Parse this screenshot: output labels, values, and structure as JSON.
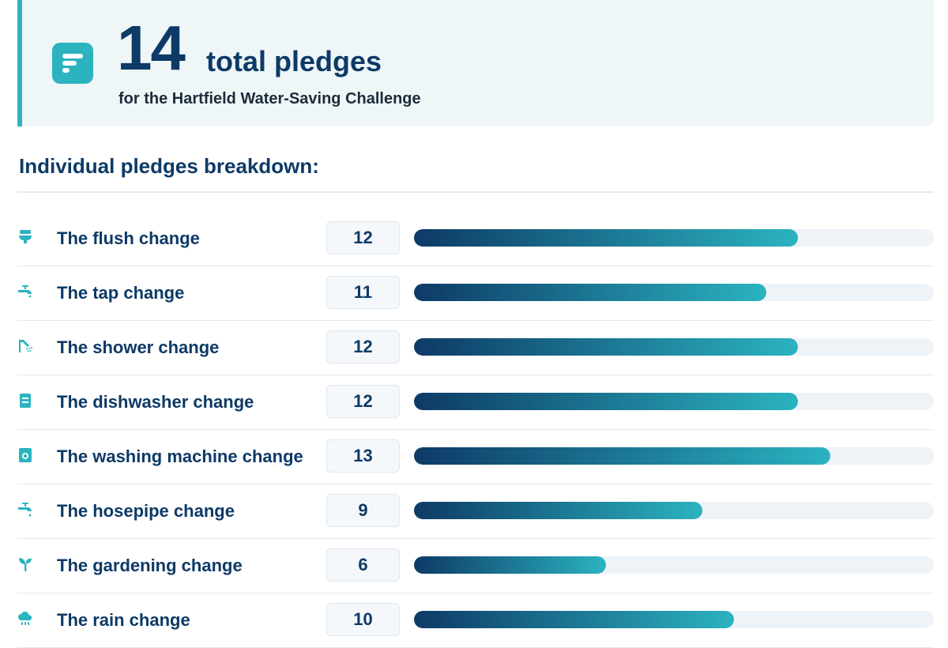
{
  "summary": {
    "total": "14",
    "total_label": "total pledges",
    "subtitle": "for the Hartfield Water-Saving Challenge"
  },
  "section_title": "Individual pledges breakdown:",
  "accent_color": "#2bb3c0",
  "bar_max": 14,
  "pledges": [
    {
      "label": "The flush change",
      "count": 12,
      "icon": "toilet-icon"
    },
    {
      "label": "The tap change",
      "count": 11,
      "icon": "tap-icon"
    },
    {
      "label": "The shower change",
      "count": 12,
      "icon": "shower-icon"
    },
    {
      "label": "The dishwasher change",
      "count": 12,
      "icon": "dishwasher-icon"
    },
    {
      "label": "The washing machine change",
      "count": 13,
      "icon": "washing-machine-icon"
    },
    {
      "label": "The hosepipe change",
      "count": 9,
      "icon": "hosepipe-tap-icon"
    },
    {
      "label": "The gardening change",
      "count": 6,
      "icon": "seedling-icon"
    },
    {
      "label": "The rain change",
      "count": 10,
      "icon": "rain-cloud-icon"
    }
  ]
}
